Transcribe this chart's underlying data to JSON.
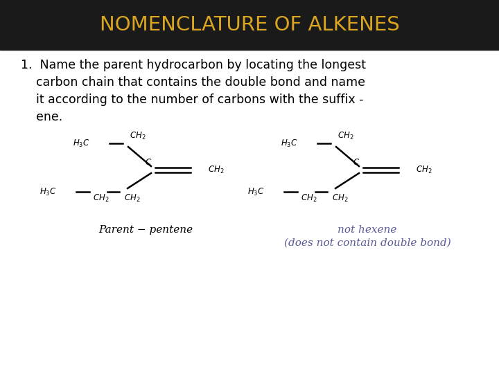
{
  "title": "NOMENCLATURE OF ALKENES",
  "title_color": "#DAA520",
  "title_bg_color": "#1a1a1a",
  "bg_color": "#ffffff",
  "body_text_color": "#000000",
  "body_text": "1.  Name the parent hydrocarbon by locating the longest\n    carbon chain that contains the double bond and name\n    it according to the number of carbons with the suffix -\n    ene.",
  "label_left": "Parent − pentene",
  "label_right": "not hexene\n(does not contain double bond)",
  "label_color_left": "#000000",
  "label_color_right": "#5a5a9a",
  "struct_lw": 1.8,
  "struct_fs": 8.5
}
